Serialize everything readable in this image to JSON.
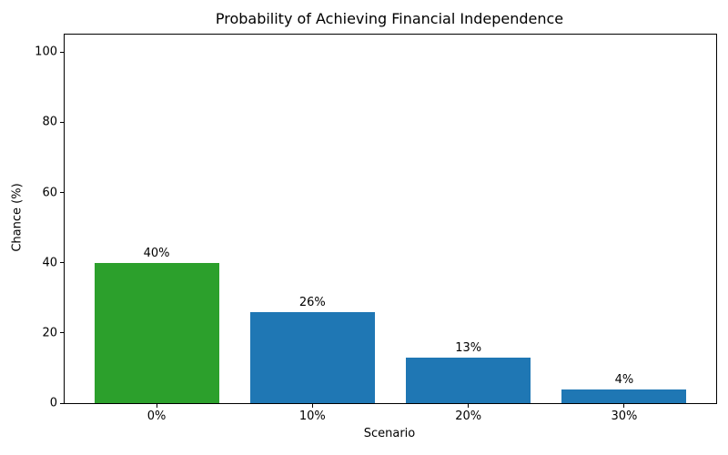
{
  "chart_data": {
    "type": "bar",
    "title": "Probability of Achieving Financial Independence",
    "xlabel": "Scenario",
    "ylabel": "Chance (%)",
    "categories": [
      "0%",
      "10%",
      "20%",
      "30%"
    ],
    "values": [
      40,
      26,
      13,
      4
    ],
    "bar_labels": [
      "40%",
      "26%",
      "13%",
      "4%"
    ],
    "bar_colors": [
      "#2ca02c",
      "#1f77b4",
      "#1f77b4",
      "#1f77b4"
    ],
    "yticks": [
      0,
      20,
      40,
      60,
      80,
      100
    ],
    "ylim": [
      0,
      105
    ],
    "xlim": [
      -0.59,
      3.59
    ],
    "bar_width_units": 0.8,
    "grid": false,
    "legend": "none"
  }
}
